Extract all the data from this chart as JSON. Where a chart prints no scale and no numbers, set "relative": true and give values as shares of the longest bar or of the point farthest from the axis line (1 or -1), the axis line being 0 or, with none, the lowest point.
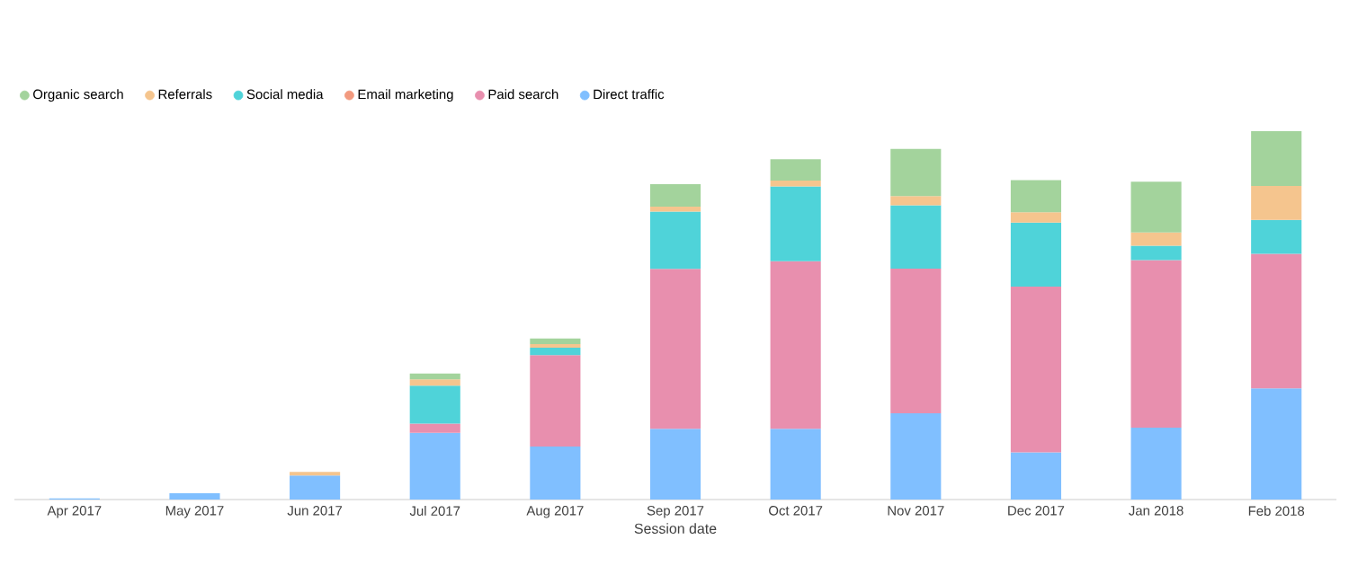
{
  "chart_data": {
    "type": "bar",
    "stacked": true,
    "relative": true,
    "xlabel": "Session date",
    "legend": "top left",
    "categories": [
      "Apr 2017",
      "May 2017",
      "Jun 2017",
      "Jul 2017",
      "Aug 2017",
      "Sep 2017",
      "Oct 2017",
      "Nov 2017",
      "Dec 2017",
      "Jan 2018",
      "Feb 2018"
    ],
    "series": [
      {
        "name": "Direct traffic",
        "color": "#80bfff",
        "values": [
          0.003,
          0.017,
          0.065,
          0.181,
          0.144,
          0.192,
          0.192,
          0.234,
          0.128,
          0.195,
          0.302
        ]
      },
      {
        "name": "Paid search",
        "color": "#e88fae",
        "values": [
          null,
          null,
          null,
          0.025,
          0.248,
          0.434,
          0.455,
          0.393,
          0.45,
          0.455,
          0.365
        ]
      },
      {
        "name": "Email marketing",
        "color": "#f29a7f",
        "values": [
          null,
          null,
          null,
          null,
          null,
          null,
          null,
          null,
          null,
          null,
          null
        ]
      },
      {
        "name": "Social media",
        "color": "#4fd3d9",
        "values": [
          null,
          null,
          null,
          0.103,
          0.02,
          0.156,
          0.203,
          0.172,
          0.174,
          0.039,
          0.092
        ]
      },
      {
        "name": "Referrals",
        "color": "#f5c58e",
        "values": [
          null,
          null,
          0.01,
          0.017,
          0.01,
          0.013,
          0.016,
          0.025,
          0.028,
          0.036,
          0.092
        ]
      },
      {
        "name": "Organic search",
        "color": "#a3d39c",
        "values": [
          null,
          null,
          null,
          0.016,
          0.015,
          0.061,
          0.058,
          0.128,
          0.087,
          0.138,
          0.149
        ]
      }
    ]
  }
}
